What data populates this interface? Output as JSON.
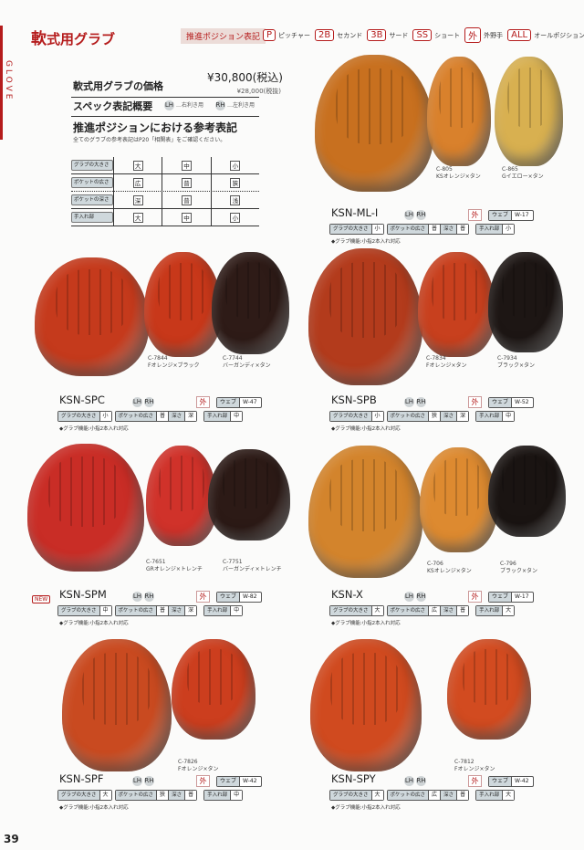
{
  "header": {
    "side_label": "GLOVE",
    "title_big": "軟",
    "title_rest": "式用グラブ",
    "position_heading": "推進ポジション表記",
    "positions": [
      {
        "code": "P",
        "label": "ピッチャー"
      },
      {
        "code": "2B",
        "label": "セカンド"
      },
      {
        "code": "3B",
        "label": "サード"
      },
      {
        "code": "SS",
        "label": "ショート"
      },
      {
        "code": "外",
        "label": "外野手"
      },
      {
        "code": "ALL",
        "label": "オールポジション"
      }
    ]
  },
  "intro": {
    "price_title": "軟式用グラブの価格",
    "price_tax_in": "¥30,800(税込)",
    "price_tax_ex": "¥28,000(税抜)",
    "spec_title": "スペック表記概要",
    "lh": "LH",
    "lh_desc": "…右利き用",
    "rh": "RH",
    "rh_desc": "…左利き用",
    "ref_title": "推進ポジションにおける参考表記",
    "ref_note": "全てのグラブの参考表記はP20「相関表」をご確認ください。",
    "ref_table": [
      {
        "label": "グラブの大きさ",
        "values": [
          "大",
          "中",
          "小"
        ]
      },
      {
        "label": "ポケットの広さ",
        "values": [
          "広",
          "普",
          "狭"
        ]
      },
      {
        "label": "ポケットの深さ",
        "values": [
          "深",
          "普",
          "浅"
        ]
      },
      {
        "label": "手入れ部",
        "values": [
          "大",
          "中",
          "小"
        ]
      }
    ]
  },
  "labels": {
    "size": "グラブの大きさ",
    "pocket_width": "ポケットの広さ",
    "depth": "深さ",
    "care": "手入れ部",
    "web": "ウェブ",
    "lh": "LH",
    "rh": "RH",
    "new": "NEW"
  },
  "products": [
    {
      "name": "KSN-ML-Ⅰ",
      "is_new": false,
      "position": "外",
      "web": "W-17",
      "size": "小",
      "pocket_width": "普",
      "pocket_depth": "普",
      "care": "小",
      "note": "◆グラブ機能:小指2本入れ対応",
      "variants": [
        {
          "code": "C-805",
          "color": "KSオレンジ×タン",
          "hex": "#d9812c"
        },
        {
          "code": "C-865",
          "color": "Gイエロー×タン",
          "hex": "#d8b050"
        }
      ],
      "main_hex": "#c8701f"
    },
    {
      "name": "KSN-SPC",
      "is_new": false,
      "position": "外",
      "web": "W-47",
      "size": "小",
      "pocket_width": "普",
      "pocket_depth": "深",
      "care": "中",
      "note": "◆グラブ機能:小指2本入れ対応",
      "variants": [
        {
          "code": "C-7844",
          "color": "Fオレンジ×ブラック",
          "hex": "#c8381a"
        },
        {
          "code": "C-7744",
          "color": "バーガンディ×タン",
          "hex": "#2e1b17"
        }
      ],
      "main_hex": "#c53a1c"
    },
    {
      "name": "KSN-SPB",
      "is_new": false,
      "position": "外",
      "web": "W-52",
      "size": "小",
      "pocket_width": "狭",
      "pocket_depth": "深",
      "care": "中",
      "note": "◆グラブ機能:小指2本入れ対応",
      "variants": [
        {
          "code": "C-7834",
          "color": "Fオレンジ×タン",
          "hex": "#c8401e"
        },
        {
          "code": "C-7934",
          "color": "ブラック×タン",
          "hex": "#1d1614"
        }
      ],
      "main_hex": "#b33b1c"
    },
    {
      "name": "KSN-SPM",
      "is_new": true,
      "position": "外",
      "web": "W-82",
      "size": "中",
      "pocket_width": "普",
      "pocket_depth": "深",
      "care": "中",
      "note": "◆グラブ機能:小指2本入れ対応",
      "variants": [
        {
          "code": "C-7651",
          "color": "GRオレンジ×トレンチ",
          "hex": "#d0322a"
        },
        {
          "code": "C-7751",
          "color": "バーガンディ×トレンチ",
          "hex": "#2c1a16"
        }
      ],
      "main_hex": "#c92d26"
    },
    {
      "name": "KSN-X",
      "is_new": false,
      "position": "外",
      "web": "W-17",
      "size": "大",
      "pocket_width": "広",
      "pocket_depth": "普",
      "care": "大",
      "note": "◆グラブ機能:小指2本入れ対応",
      "variants": [
        {
          "code": "C-706",
          "color": "KSオレンジ×タン",
          "hex": "#dd8a30"
        },
        {
          "code": "C-796",
          "color": "ブラック×タン",
          "hex": "#1a1412"
        }
      ],
      "main_hex": "#d3842c"
    },
    {
      "name": "KSN-SPF",
      "is_new": false,
      "position": "外",
      "web": "W-42",
      "size": "大",
      "pocket_width": "狭",
      "pocket_depth": "普",
      "care": "中",
      "note": "◆グラブ機能:小指2本入れ対応",
      "variants": [
        {
          "code": "C-7826",
          "color": "Fオレンジ×タン",
          "hex": "#cc3e1e"
        }
      ],
      "main_hex": "#c94a20"
    },
    {
      "name": "KSN-SPY",
      "is_new": false,
      "position": "外",
      "web": "W-42",
      "size": "大",
      "pocket_width": "広",
      "pocket_depth": "普",
      "care": "大",
      "note": "◆グラブ機能:小指2本入れ対応",
      "variants": [
        {
          "code": "C-7812",
          "color": "Fオレンジ×タン",
          "hex": "#d24b20"
        }
      ],
      "main_hex": "#d04a1f"
    }
  ],
  "page_number": "39"
}
